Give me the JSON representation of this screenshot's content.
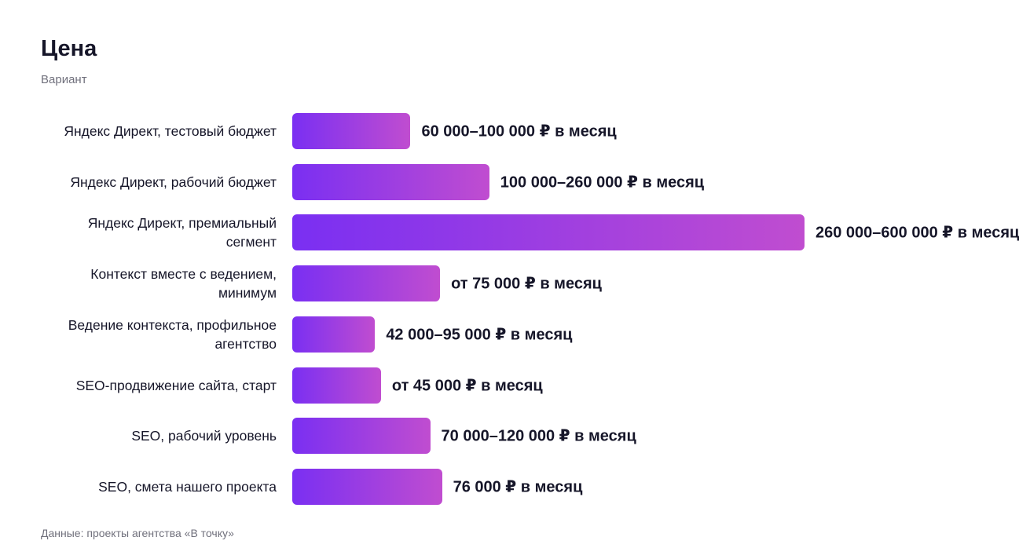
{
  "chart_data": {
    "type": "bar",
    "orientation": "horizontal",
    "title": "Цена",
    "y_label": "Вариант",
    "source": "Данные: проекты агентства «В точку»",
    "categories": [
      "Яндекс Директ, тестовый бюджет",
      "Яндекс Директ, рабочий бюджет",
      "Яндекс Директ, премиальный сегмент",
      "Контекст вместе с ведением, минимум",
      "Ведение контекста, профильное агентство",
      "SEO-продвижение сайта, старт",
      "SEO, рабочий уровень",
      "SEO, смета нашего проекта"
    ],
    "values": [
      60000,
      100000,
      260000,
      75000,
      42000,
      45000,
      70000,
      76000
    ],
    "value_labels": [
      "60 000–100 000 ₽ в месяц",
      "100 000–260 000 ₽ в месяц",
      "260 000–600 000 ₽ в месяц",
      "от 75 000 ₽ в месяц",
      "42 000–95 000 ₽ в месяц",
      "от 45 000 ₽ в месяц",
      "70 000–120 000 ₽ в месяц",
      "76 000 ₽ в месяц"
    ],
    "colors": [
      "#7a2ff2",
      "#c04dd0"
    ]
  }
}
